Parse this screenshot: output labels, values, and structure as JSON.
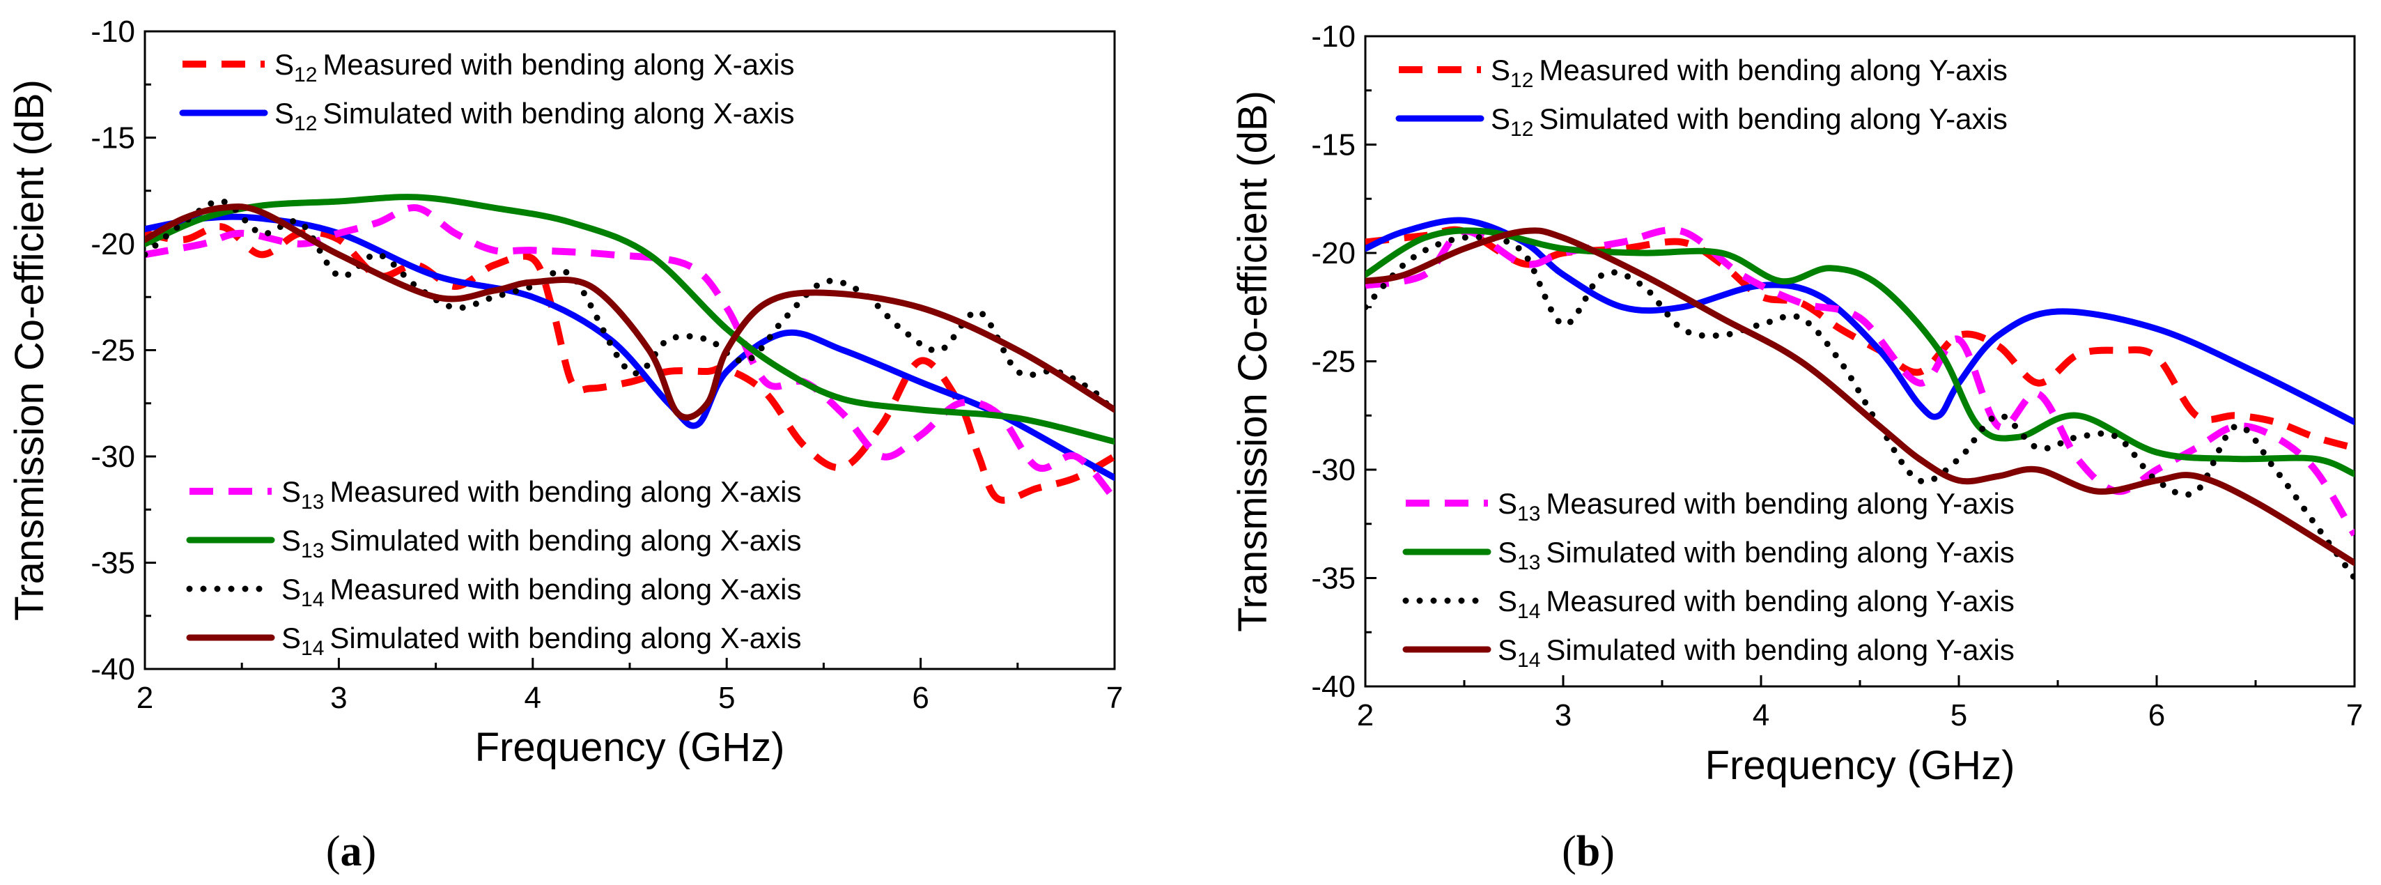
{
  "chart_data": [
    {
      "type": "line",
      "panel_label": "(a)",
      "xlabel": "Frequency (GHz)",
      "ylabel": "Transmission Co-efficient (dB)",
      "xlim": [
        2,
        7
      ],
      "ylim": [
        -40,
        -10
      ],
      "xticks": [
        "2",
        "3",
        "4",
        "5",
        "6",
        "7"
      ],
      "yticks": [
        "-10",
        "-15",
        "-20",
        "-25",
        "-30",
        "-35",
        "-40"
      ],
      "legend_top": [
        "s12m",
        "s12s"
      ],
      "legend_bottom": [
        "s13m",
        "s13s",
        "s14m",
        "s14s"
      ],
      "series": [
        {
          "key": "s12m",
          "sub": "12",
          "label": "Measured with bending along X-axis",
          "color": "#ff0000",
          "style": "dash",
          "x": [
            2,
            2.2,
            2.4,
            2.6,
            2.8,
            3.0,
            3.2,
            3.4,
            3.6,
            3.8,
            4.0,
            4.1,
            4.2,
            4.3,
            4.5,
            4.7,
            4.9,
            5.0,
            5.2,
            5.4,
            5.6,
            5.8,
            6.0,
            6.2,
            6.3,
            6.4,
            6.6,
            6.8,
            7.0
          ],
          "y": [
            -19.5,
            -19.8,
            -19.2,
            -20.5,
            -19.5,
            -19.8,
            -21.5,
            -21.0,
            -22.0,
            -21.0,
            -20.7,
            -23.0,
            -26.5,
            -26.8,
            -26.5,
            -26.0,
            -26.0,
            -25.9,
            -27.0,
            -29.5,
            -30.5,
            -28.5,
            -25.5,
            -27.5,
            -30.0,
            -32.0,
            -31.5,
            -31.0,
            -30.0
          ]
        },
        {
          "key": "s12s",
          "sub": "12",
          "label": "Simulated with bending along X-axis",
          "color": "#0000ff",
          "style": "solid",
          "x": [
            2,
            2.3,
            2.6,
            3.0,
            3.5,
            4.0,
            4.4,
            4.7,
            4.85,
            5.0,
            5.3,
            5.6,
            6.0,
            6.4,
            6.8,
            7.0
          ],
          "y": [
            -19.3,
            -18.8,
            -18.8,
            -19.5,
            -21.5,
            -22.5,
            -24.5,
            -27.5,
            -28.5,
            -26.0,
            -24.2,
            -25.0,
            -26.5,
            -28.0,
            -30.0,
            -31.0
          ]
        },
        {
          "key": "s13m",
          "sub": "13",
          "label": "Measured with bending along X-axis",
          "color": "#ff00ff",
          "style": "dash",
          "x": [
            2,
            2.3,
            2.5,
            2.8,
            3.0,
            3.2,
            3.4,
            3.6,
            3.8,
            4.0,
            4.4,
            4.8,
            5.0,
            5.2,
            5.4,
            5.6,
            5.8,
            6.0,
            6.2,
            6.4,
            6.6,
            6.8,
            7.0
          ],
          "y": [
            -20.5,
            -20.0,
            -19.5,
            -20.0,
            -19.5,
            -19.0,
            -18.3,
            -19.5,
            -20.3,
            -20.3,
            -20.5,
            -21.0,
            -23.0,
            -26.5,
            -26.5,
            -28.0,
            -30.0,
            -29.0,
            -27.5,
            -28.0,
            -30.5,
            -30.0,
            -32.0
          ]
        },
        {
          "key": "s13s",
          "sub": "13",
          "label": "Simulated with bending along X-axis",
          "color": "#008000",
          "style": "solid",
          "x": [
            2,
            2.3,
            2.6,
            3.0,
            3.4,
            3.8,
            4.2,
            4.6,
            5.0,
            5.3,
            5.6,
            6.0,
            6.5,
            7.0
          ],
          "y": [
            -20.0,
            -18.8,
            -18.2,
            -18.0,
            -17.8,
            -18.3,
            -19.0,
            -20.5,
            -24.0,
            -26.0,
            -27.3,
            -27.8,
            -28.2,
            -29.3
          ]
        },
        {
          "key": "s14m",
          "sub": "14",
          "label": "Measured with bending along X-axis",
          "color": "#000000",
          "style": "dot",
          "x": [
            2,
            2.2,
            2.4,
            2.6,
            2.8,
            3.0,
            3.2,
            3.4,
            3.6,
            3.8,
            4.0,
            4.2,
            4.5,
            4.7,
            4.9,
            5.1,
            5.3,
            5.5,
            5.7,
            5.9,
            6.1,
            6.3,
            6.5,
            6.7,
            6.9,
            7.0
          ],
          "y": [
            -20.5,
            -19.0,
            -18.0,
            -19.5,
            -19.0,
            -21.5,
            -20.5,
            -22.0,
            -23.0,
            -22.5,
            -22.0,
            -21.5,
            -26.0,
            -24.5,
            -24.5,
            -25.5,
            -23.5,
            -21.8,
            -22.3,
            -24.0,
            -25.0,
            -23.2,
            -26.0,
            -26.0,
            -27.0,
            -28.0
          ]
        },
        {
          "key": "s14s",
          "sub": "14",
          "label": "Simulated with bending along X-axis",
          "color": "#800000",
          "style": "solid",
          "x": [
            2,
            2.2,
            2.4,
            2.6,
            3.0,
            3.5,
            3.8,
            4.0,
            4.3,
            4.6,
            4.75,
            4.9,
            5.0,
            5.2,
            5.5,
            6.0,
            6.5,
            7.0
          ],
          "y": [
            -19.8,
            -18.8,
            -18.3,
            -18.5,
            -20.5,
            -22.5,
            -22.2,
            -21.8,
            -22.0,
            -25.0,
            -28.0,
            -27.5,
            -25.0,
            -22.8,
            -22.3,
            -23.0,
            -25.0,
            -27.8
          ]
        }
      ]
    },
    {
      "type": "line",
      "panel_label": "(b)",
      "xlabel": "Frequency (GHz)",
      "ylabel": "Transmission Co-efficient (dB)",
      "xlim": [
        2,
        7
      ],
      "ylim": [
        -40,
        -10
      ],
      "xticks": [
        "2",
        "3",
        "4",
        "5",
        "6",
        "7"
      ],
      "yticks": [
        "-10",
        "-15",
        "-20",
        "-25",
        "-30",
        "-35",
        "-40"
      ],
      "legend_top": [
        "s12m",
        "s12s"
      ],
      "legend_bottom": [
        "s13m",
        "s13s",
        "s14m",
        "s14s"
      ],
      "series": [
        {
          "key": "s12m",
          "sub": "12",
          "label": "Measured with bending along Y-axis",
          "color": "#ff0000",
          "style": "dash",
          "x": [
            2,
            2.3,
            2.5,
            2.8,
            3.0,
            3.3,
            3.6,
            3.8,
            4.0,
            4.2,
            4.4,
            4.6,
            4.8,
            5.0,
            5.2,
            5.4,
            5.6,
            5.8,
            6.0,
            6.2,
            6.4,
            6.6,
            6.8,
            7.0
          ],
          "y": [
            -19.5,
            -19.2,
            -19.0,
            -20.5,
            -20.0,
            -19.8,
            -19.5,
            -20.5,
            -22.0,
            -22.3,
            -23.5,
            -24.5,
            -25.5,
            -23.8,
            -24.3,
            -26.0,
            -24.7,
            -24.5,
            -24.8,
            -27.5,
            -27.5,
            -27.8,
            -28.5,
            -29.0
          ]
        },
        {
          "key": "s12s",
          "sub": "12",
          "label": "Simulated with bending along Y-axis",
          "color": "#0000ff",
          "style": "solid",
          "x": [
            2,
            2.2,
            2.5,
            2.8,
            3.0,
            3.3,
            3.6,
            4.0,
            4.3,
            4.6,
            4.8,
            4.9,
            5.0,
            5.2,
            5.5,
            6.0,
            6.5,
            7.0
          ],
          "y": [
            -19.8,
            -19.0,
            -18.5,
            -19.5,
            -21.0,
            -22.5,
            -22.5,
            -21.5,
            -22.0,
            -24.5,
            -27.0,
            -27.5,
            -26.0,
            -23.8,
            -22.7,
            -23.5,
            -25.5,
            -27.8
          ]
        },
        {
          "key": "s13m",
          "sub": "13",
          "label": "Measured with bending along Y-axis",
          "color": "#ff00ff",
          "style": "dash",
          "x": [
            2,
            2.3,
            2.5,
            2.8,
            3.0,
            3.3,
            3.6,
            3.9,
            4.2,
            4.5,
            4.8,
            5.0,
            5.2,
            5.4,
            5.6,
            5.8,
            6.0,
            6.2,
            6.4,
            6.6,
            6.8,
            7.0
          ],
          "y": [
            -21.5,
            -21.0,
            -19.0,
            -20.5,
            -20.0,
            -19.5,
            -19.0,
            -21.0,
            -22.3,
            -23.0,
            -26.0,
            -24.0,
            -28.0,
            -26.5,
            -29.5,
            -31.0,
            -30.0,
            -29.0,
            -28.0,
            -28.5,
            -30.0,
            -33.0
          ]
        },
        {
          "key": "s13s",
          "sub": "13",
          "label": "Simulated with bending along Y-axis",
          "color": "#008000",
          "style": "solid",
          "x": [
            2,
            2.3,
            2.6,
            3.0,
            3.4,
            3.8,
            4.1,
            4.35,
            4.6,
            4.9,
            5.1,
            5.3,
            5.6,
            6.0,
            6.4,
            6.8,
            7.0
          ],
          "y": [
            -21.0,
            -19.3,
            -19.0,
            -19.8,
            -20.0,
            -20.0,
            -21.3,
            -20.7,
            -21.5,
            -24.5,
            -28.0,
            -28.5,
            -27.5,
            -29.2,
            -29.5,
            -29.5,
            -30.2
          ]
        },
        {
          "key": "s14m",
          "sub": "14",
          "label": "Measured with bending along Y-axis",
          "color": "#000000",
          "style": "dot",
          "x": [
            2,
            2.2,
            2.4,
            2.6,
            2.8,
            3.0,
            3.2,
            3.4,
            3.6,
            3.8,
            4.0,
            4.2,
            4.4,
            4.6,
            4.8,
            5.0,
            5.2,
            5.4,
            5.6,
            5.8,
            6.0,
            6.2,
            6.4,
            6.6,
            6.8,
            7.0
          ],
          "y": [
            -22.5,
            -20.5,
            -19.5,
            -19.3,
            -20.0,
            -23.3,
            -21.0,
            -21.5,
            -23.5,
            -23.8,
            -23.3,
            -23.0,
            -25.0,
            -28.0,
            -30.5,
            -29.5,
            -27.5,
            -29.0,
            -28.5,
            -28.5,
            -30.5,
            -31.0,
            -28.0,
            -30.0,
            -32.5,
            -35.0
          ]
        },
        {
          "key": "s14s",
          "sub": "14",
          "label": "Simulated with bending along Y-axis",
          "color": "#800000",
          "style": "solid",
          "x": [
            2,
            2.2,
            2.5,
            2.8,
            3.0,
            3.4,
            3.8,
            4.2,
            4.6,
            4.8,
            5.0,
            5.2,
            5.4,
            5.7,
            6.0,
            6.2,
            6.5,
            7.0
          ],
          "y": [
            -21.3,
            -21.0,
            -19.8,
            -19.0,
            -19.3,
            -21.0,
            -23.0,
            -25.0,
            -28.0,
            -29.5,
            -30.5,
            -30.3,
            -30.0,
            -31.0,
            -30.5,
            -30.3,
            -31.5,
            -34.3
          ]
        }
      ]
    }
  ]
}
